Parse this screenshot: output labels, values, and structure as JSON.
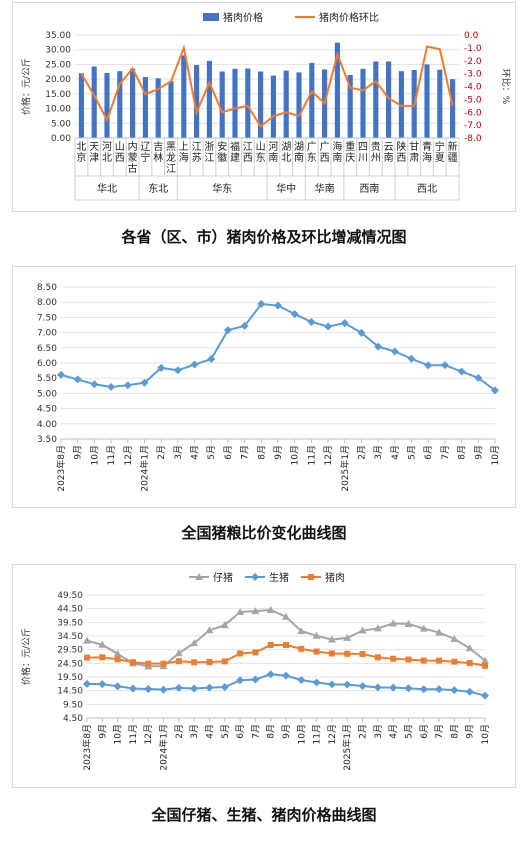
{
  "chart_data": [
    {
      "type": "bar+line",
      "title": "各省（区、市）猪肉价格及环比增减情况图",
      "ylabel": "价格：元/公斤",
      "y2label": "环比：%",
      "ylim": [
        0,
        35
      ],
      "y2lim": [
        -8,
        0
      ],
      "yticks": [
        "0.00",
        "5.00",
        "10.00",
        "15.00",
        "20.00",
        "25.00",
        "30.00",
        "35.00"
      ],
      "y2ticks": [
        "0.0",
        "-1.0",
        "-2.0",
        "-3.0",
        "-4.0",
        "-5.0",
        "-6.0",
        "-7.0",
        "-8.0"
      ],
      "legend": [
        "猪肉价格",
        "猪肉价格环比"
      ],
      "categories": [
        "北京",
        "天津",
        "河北",
        "山西",
        "内蒙古",
        "辽宁",
        "吉林",
        "黑龙江",
        "上海",
        "江苏",
        "浙江",
        "安徽",
        "福建",
        "江西",
        "山东",
        "河南",
        "湖北",
        "湖南",
        "广东",
        "广西",
        "海南",
        "重庆",
        "四川",
        "贵州",
        "云南",
        "陕西",
        "甘肃",
        "青海",
        "宁夏",
        "新疆"
      ],
      "regions": [
        {
          "name": "华北",
          "count": 5
        },
        {
          "name": "东北",
          "count": 3
        },
        {
          "name": "华东",
          "count": 7
        },
        {
          "name": "华中",
          "count": 3
        },
        {
          "name": "华南",
          "count": 3
        },
        {
          "name": "西南",
          "count": 4
        },
        {
          "name": "西北",
          "count": 5
        }
      ],
      "series": [
        {
          "name": "猪肉价格",
          "type": "bar",
          "color": "#4472c4",
          "values": [
            22.0,
            24.3,
            22.1,
            22.7,
            23.6,
            20.7,
            20.3,
            19.3,
            28.1,
            24.8,
            26.2,
            22.6,
            23.5,
            23.6,
            22.6,
            21.2,
            22.9,
            22.3,
            25.5,
            23.3,
            32.4,
            21.4,
            23.5,
            26.0,
            26.0,
            22.7,
            23.1,
            25.0,
            23.2,
            20.0
          ]
        },
        {
          "name": "猪肉价格环比",
          "type": "line",
          "color": "#ed7d31",
          "values": [
            -3.0,
            -4.7,
            -6.6,
            -3.8,
            -2.6,
            -4.6,
            -4.2,
            -3.6,
            -1.0,
            -6.0,
            -3.7,
            -6.0,
            -5.7,
            -5.5,
            -7.1,
            -6.3,
            -6.0,
            -6.3,
            -4.4,
            -5.3,
            -1.5,
            -4.1,
            -4.3,
            -3.6,
            -4.9,
            -5.5,
            -5.5,
            -0.9,
            -1.1,
            -5.5
          ]
        }
      ]
    },
    {
      "type": "line",
      "title": "全国猪粮比价变化曲线图",
      "ylim": [
        3.5,
        8.5
      ],
      "yticks": [
        "3.50",
        "4.00",
        "4.50",
        "5.00",
        "5.50",
        "6.00",
        "6.50",
        "7.00",
        "7.50",
        "8.00",
        "8.50"
      ],
      "x": [
        "2023年8月",
        "9月",
        "10月",
        "11月",
        "12月",
        "2024年1月",
        "2月",
        "3月",
        "4月",
        "5月",
        "6月",
        "7月",
        "8月",
        "9月",
        "10月",
        "11月",
        "12月",
        "2025年1月",
        "2月",
        "3月",
        "4月",
        "5月",
        "6月",
        "7月",
        "8月",
        "9月",
        "10月"
      ],
      "series": [
        {
          "name": "猪粮比价",
          "color": "#5b9bd5",
          "values": [
            5.61,
            5.46,
            5.3,
            5.21,
            5.27,
            5.35,
            5.84,
            5.76,
            5.95,
            6.13,
            7.08,
            7.22,
            7.94,
            7.89,
            7.61,
            7.35,
            7.2,
            7.31,
            6.99,
            6.54,
            6.38,
            6.14,
            5.92,
            5.93,
            5.72,
            5.51,
            5.1
          ]
        }
      ]
    },
    {
      "type": "line",
      "title": "全国仔猪、生猪、猪肉价格曲线图",
      "ylabel": "价格：元/公斤",
      "ylim": [
        4.5,
        49.5
      ],
      "yticks": [
        "4.50",
        "9.50",
        "14.50",
        "19.50",
        "24.50",
        "29.50",
        "34.50",
        "39.50",
        "44.50",
        "49.50"
      ],
      "legend": [
        "仔猪",
        "生猪",
        "猪肉"
      ],
      "x": [
        "2023年8月",
        "9月",
        "10月",
        "11月",
        "12月",
        "2024年1月",
        "2月",
        "3月",
        "4月",
        "5月",
        "6月",
        "7月",
        "8月",
        "9月",
        "10月",
        "11月",
        "12月",
        "2025年1月",
        "2月",
        "3月",
        "4月",
        "5月",
        "6月",
        "7月",
        "8月",
        "9月",
        "10月"
      ],
      "series": [
        {
          "name": "仔猪",
          "color": "#a5a5a5",
          "marker": "triangle",
          "values": [
            32.8,
            31.3,
            28.0,
            24.5,
            23.4,
            23.5,
            28.2,
            31.9,
            36.6,
            38.5,
            43.3,
            43.6,
            44.0,
            41.5,
            36.3,
            34.6,
            33.2,
            33.8,
            36.5,
            37.3,
            39.1,
            38.9,
            37.2,
            35.8,
            33.4,
            30.0,
            25.5
          ]
        },
        {
          "name": "生猪",
          "color": "#5b9bd5",
          "marker": "diamond",
          "values": [
            17.0,
            16.9,
            16.1,
            15.3,
            15.1,
            14.9,
            15.5,
            15.3,
            15.6,
            15.8,
            18.3,
            18.6,
            20.5,
            20.0,
            18.4,
            17.5,
            16.8,
            16.7,
            16.2,
            15.7,
            15.6,
            15.4,
            15.0,
            15.0,
            14.7,
            14.1,
            12.7
          ]
        },
        {
          "name": "猪肉",
          "color": "#ed7d31",
          "marker": "square",
          "values": [
            26.6,
            26.7,
            26.0,
            24.9,
            24.4,
            24.4,
            25.3,
            24.9,
            25.0,
            25.2,
            28.1,
            28.5,
            31.2,
            31.2,
            29.8,
            28.8,
            28.1,
            28.0,
            27.9,
            26.7,
            26.2,
            25.9,
            25.5,
            25.5,
            25.1,
            24.6,
            23.6
          ]
        }
      ]
    }
  ]
}
